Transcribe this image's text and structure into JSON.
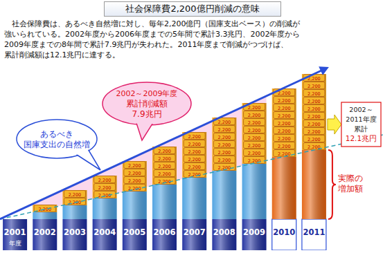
{
  "chart_data": {
    "type": "bar",
    "stacked": true,
    "title": "社会保障費2,200億円削減の意味",
    "description": [
      "社会保障費は、あるべき自然増に対し、毎年2,200億円（国庫支出ベース）の削減が",
      "強いられている。2002年度から2006年度までの5年間で累計3.3兆円、2002年度から",
      "2009年度までの8年間で累計7.9兆円が失われた。2011年度まで削減がつづけば、",
      "累計削減額は12.1兆円に達する。"
    ],
    "x_label": "年度",
    "categories": [
      "2001",
      "2002",
      "2003",
      "2004",
      "2005",
      "2006",
      "2007",
      "2008",
      "2009",
      "2010",
      "2011"
    ],
    "series": [
      {
        "values": [
          9000,
          9000,
          9000,
          9000,
          9000,
          9000,
          9000,
          9000,
          9000,
          9000,
          9000
        ],
        "colors": [
          "#1c2c9e",
          "#1c2c9e",
          "#1c2c9e",
          "#1c2c9e",
          "#1c2c9e",
          "#1c2c9e",
          "#1c2c9e",
          "#1c2c9e",
          "#1c2c9e",
          "#ffffff",
          "#ffffff"
        ]
      },
      {
        "name": "実際の増加額",
        "values": [
          null,
          2000,
          4000,
          6000,
          8000,
          10000,
          12000,
          14000,
          16000,
          18000,
          20000
        ],
        "colors": [
          "#4aa0e0",
          "#4aa0e0",
          "#4aa0e0",
          "#4aa0e0",
          "#4aa0e0",
          "#4aa0e0",
          "#4aa0e0",
          "#4aa0e0",
          "#4aa0e0",
          "#e4620f",
          "#e4620f"
        ]
      },
      {
        "name": "累計削減額",
        "values": [
          null,
          2200,
          4400,
          6600,
          8800,
          11000,
          13200,
          15400,
          17600,
          19800,
          22000
        ],
        "color": "#f2a81d",
        "marker": "coin"
      }
    ],
    "coin": {
      "value": 2200,
      "label": "2,200"
    },
    "ylim": [
      0,
      62000
    ],
    "tick_labels": false,
    "annotations": {
      "natural_increase": [
        "あるべき",
        "国庫支出の自然増"
      ],
      "cut_2002_2009": [
        "2002～2009年度",
        "累計削減額",
        "7.9兆円"
      ],
      "cut_2002_2011": [
        "2002～",
        "2011年度",
        "累計",
        "12.1兆円"
      ]
    }
  }
}
